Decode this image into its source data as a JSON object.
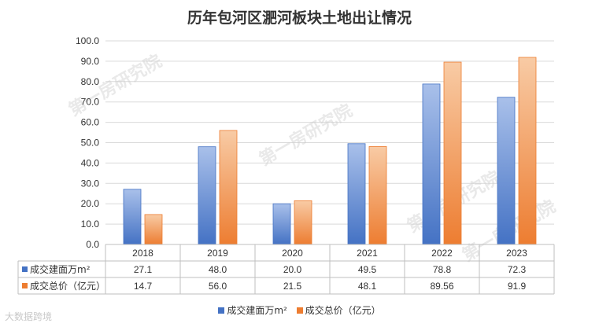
{
  "chart_data": {
    "type": "bar",
    "title": "历年包河区淝河板块土地出让情况",
    "categories": [
      "2018",
      "2019",
      "2020",
      "2021",
      "2022",
      "2023"
    ],
    "series": [
      {
        "name": "成交建面万m²",
        "values": [
          27.1,
          48.0,
          20.0,
          49.5,
          78.8,
          72.3
        ],
        "labels": [
          "27.1",
          "48.0",
          "20.0",
          "49.5",
          "78.8",
          "72.3"
        ],
        "color_top": "#a9c0ea",
        "color_bottom": "#4472c4"
      },
      {
        "name": "成交总价（亿元）",
        "values": [
          14.7,
          56.0,
          21.5,
          48.1,
          89.56,
          91.9
        ],
        "labels": [
          "14.7",
          "56.0",
          "21.5",
          "48.1",
          "89.56",
          "91.9"
        ],
        "color_top": "#f8cba5",
        "color_bottom": "#ed7d31"
      }
    ],
    "ylim": [
      0,
      100
    ],
    "yticks": [
      "0.0",
      "10.0",
      "20.0",
      "30.0",
      "40.0",
      "50.0",
      "60.0",
      "70.0",
      "80.0",
      "90.0",
      "100.0"
    ],
    "grid": true,
    "legend_position": "bottom",
    "data_table": true
  },
  "watermarks": [
    "第一房研究院",
    "第一房研究院",
    "第一房研究院",
    "第一房研究院"
  ],
  "source_mark": "大数据跨境"
}
